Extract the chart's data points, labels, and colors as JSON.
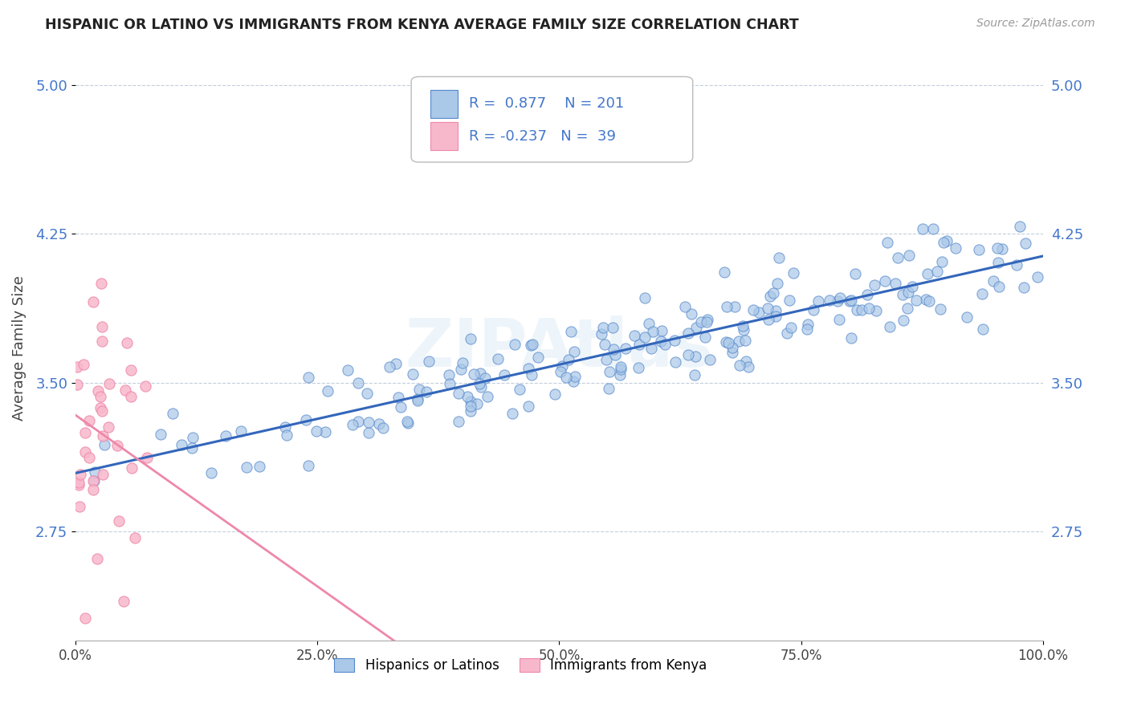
{
  "title": "HISPANIC OR LATINO VS IMMIGRANTS FROM KENYA AVERAGE FAMILY SIZE CORRELATION CHART",
  "source": "Source: ZipAtlas.com",
  "ylabel": "Average Family Size",
  "xlabel": "",
  "xlim": [
    0.0,
    1.0
  ],
  "ylim": [
    2.2,
    5.15
  ],
  "yticks": [
    2.75,
    3.5,
    4.25,
    5.0
  ],
  "xticks": [
    0.0,
    0.25,
    0.5,
    0.75,
    1.0
  ],
  "xtick_labels": [
    "0.0%",
    "25.0%",
    "50.0%",
    "75.0%",
    "100.0%"
  ],
  "blue_color": "#aac8e8",
  "blue_edge": "#5588cc",
  "pink_color": "#f8b8cc",
  "pink_edge": "#ee88aa",
  "trend_blue": "#3366bb",
  "trend_pink": "#ee88aa",
  "watermark": "ZIPAtlas",
  "legend_R_blue": "0.877",
  "legend_N_blue": "201",
  "legend_R_pink": "-0.237",
  "legend_N_pink": "39",
  "legend_label_blue": "Hispanics or Latinos",
  "legend_label_pink": "Immigrants from Kenya",
  "legend_text_color": "#4477cc",
  "blue_N": 201,
  "pink_N": 39,
  "seed": 42
}
